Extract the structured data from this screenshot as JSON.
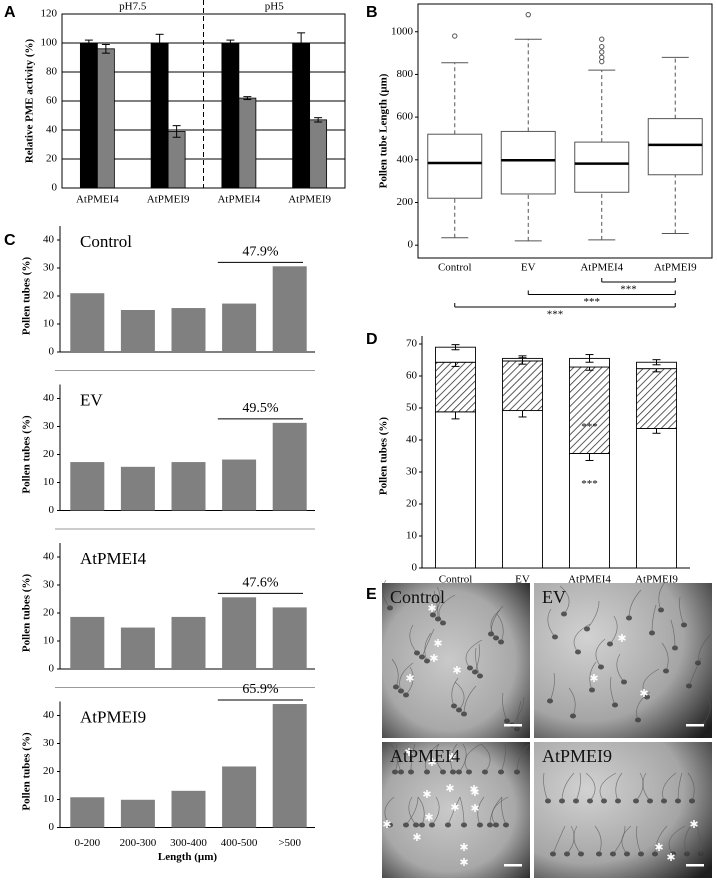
{
  "chart_data": [
    {
      "type": "grouped_bar",
      "label": "A",
      "ylabel": "Relative PME activity (%)",
      "ylim": [
        0,
        120
      ],
      "yticks": [
        0,
        20,
        40,
        60,
        80,
        100,
        120
      ],
      "grid": true,
      "groups": [
        {
          "title": "pH7.5",
          "categories": [
            "AtPMEI4",
            "AtPMEI9"
          ],
          "series": [
            {
              "color": "#000000",
              "values": [
                100,
                100
              ],
              "errors": [
                2,
                6
              ]
            },
            {
              "color": "#808080",
              "values": [
                96,
                39
              ],
              "errors": [
                3,
                4
              ]
            }
          ]
        },
        {
          "title": "pH5",
          "categories": [
            "AtPMEI4",
            "AtPMEI9"
          ],
          "series": [
            {
              "color": "#000000",
              "values": [
                100,
                100
              ],
              "errors": [
                2,
                7
              ]
            },
            {
              "color": "#808080",
              "values": [
                62,
                47
              ],
              "errors": [
                1,
                1.5
              ]
            }
          ]
        }
      ]
    },
    {
      "type": "box",
      "label": "B",
      "ylabel": "Pollen tube Length (µm)",
      "ylim": [
        -60,
        1130
      ],
      "yticks": [
        0,
        200,
        400,
        600,
        800,
        1000
      ],
      "categories": [
        "Control",
        "EV",
        "AtPMEI4",
        "AtPMEI9"
      ],
      "whisker_low": [
        35,
        20,
        25,
        55
      ],
      "q1": [
        220,
        240,
        248,
        330
      ],
      "median": [
        385,
        398,
        382,
        470
      ],
      "q3": [
        520,
        533,
        483,
        593
      ],
      "whisker_high": [
        855,
        965,
        820,
        880
      ],
      "outliers": [
        [
          980
        ],
        [
          1080
        ],
        [
          860,
          880,
          905,
          930,
          965
        ],
        []
      ],
      "brackets": [
        {
          "from": "AtPMEI4",
          "to": "AtPMEI9",
          "label": "***"
        },
        {
          "from": "EV",
          "to": "AtPMEI9",
          "label": "***"
        },
        {
          "from": "Control",
          "to": "AtPMEI9",
          "label": "***"
        }
      ]
    },
    {
      "type": "bar_panels",
      "label": "C",
      "ylabel": "Pollen tubes (%)",
      "xlabel": "Length (µm)",
      "ylim": [
        0,
        40
      ],
      "yticks": [
        0,
        10,
        20,
        30,
        40
      ],
      "color": "#808080",
      "categories": [
        "0-200",
        "200-300",
        "300-400",
        "400-500",
        ">500"
      ],
      "panels": [
        {
          "title": "Control",
          "values": [
            21,
            15,
            15.7,
            17.3,
            30.6
          ],
          "annotation": "47.9%"
        },
        {
          "title": "EV",
          "values": [
            17.3,
            15.6,
            17.3,
            18.2,
            31.3
          ],
          "annotation": "49.5%"
        },
        {
          "title": "AtPMEI4",
          "values": [
            18.6,
            14.8,
            18.6,
            25.6,
            22
          ],
          "annotation": "47.6%"
        },
        {
          "title": "AtPMEI9",
          "values": [
            10.8,
            9.9,
            13.1,
            21.8,
            44.1
          ],
          "annotation": "65.9%"
        }
      ]
    },
    {
      "type": "stacked_bar",
      "label": "D",
      "ylabel": "Pollen tubes (%)",
      "ylim": [
        0,
        70
      ],
      "yticks": [
        0,
        10,
        20,
        30,
        40,
        50,
        60,
        70
      ],
      "categories": [
        "Control",
        "EV",
        "AtPMEI4",
        "AtPMEI9"
      ],
      "series": [
        {
          "color": "#ffffff",
          "values": [
            48.8,
            49.2,
            35.8,
            43.6
          ],
          "errors": [
            2.2,
            2,
            2.2,
            1.5
          ],
          "labels": [
            null,
            null,
            "***",
            null
          ]
        },
        {
          "color": "#ffffff",
          "pattern": "hatch",
          "values": [
            15.5,
            15.5,
            27,
            18.7
          ],
          "errors": [
            1.3,
            1,
            1,
            1
          ],
          "labels": [
            null,
            null,
            "***",
            null
          ]
        },
        {
          "color": "#ffffff",
          "values": [
            4.7,
            0.8,
            2.7,
            2
          ],
          "errors": [
            0.8,
            0.8,
            1.2,
            0.8
          ]
        }
      ]
    },
    {
      "type": "micrographs",
      "label": "E",
      "panels": [
        "Control",
        "EV",
        "AtPMEI4",
        "AtPMEI9"
      ]
    }
  ]
}
